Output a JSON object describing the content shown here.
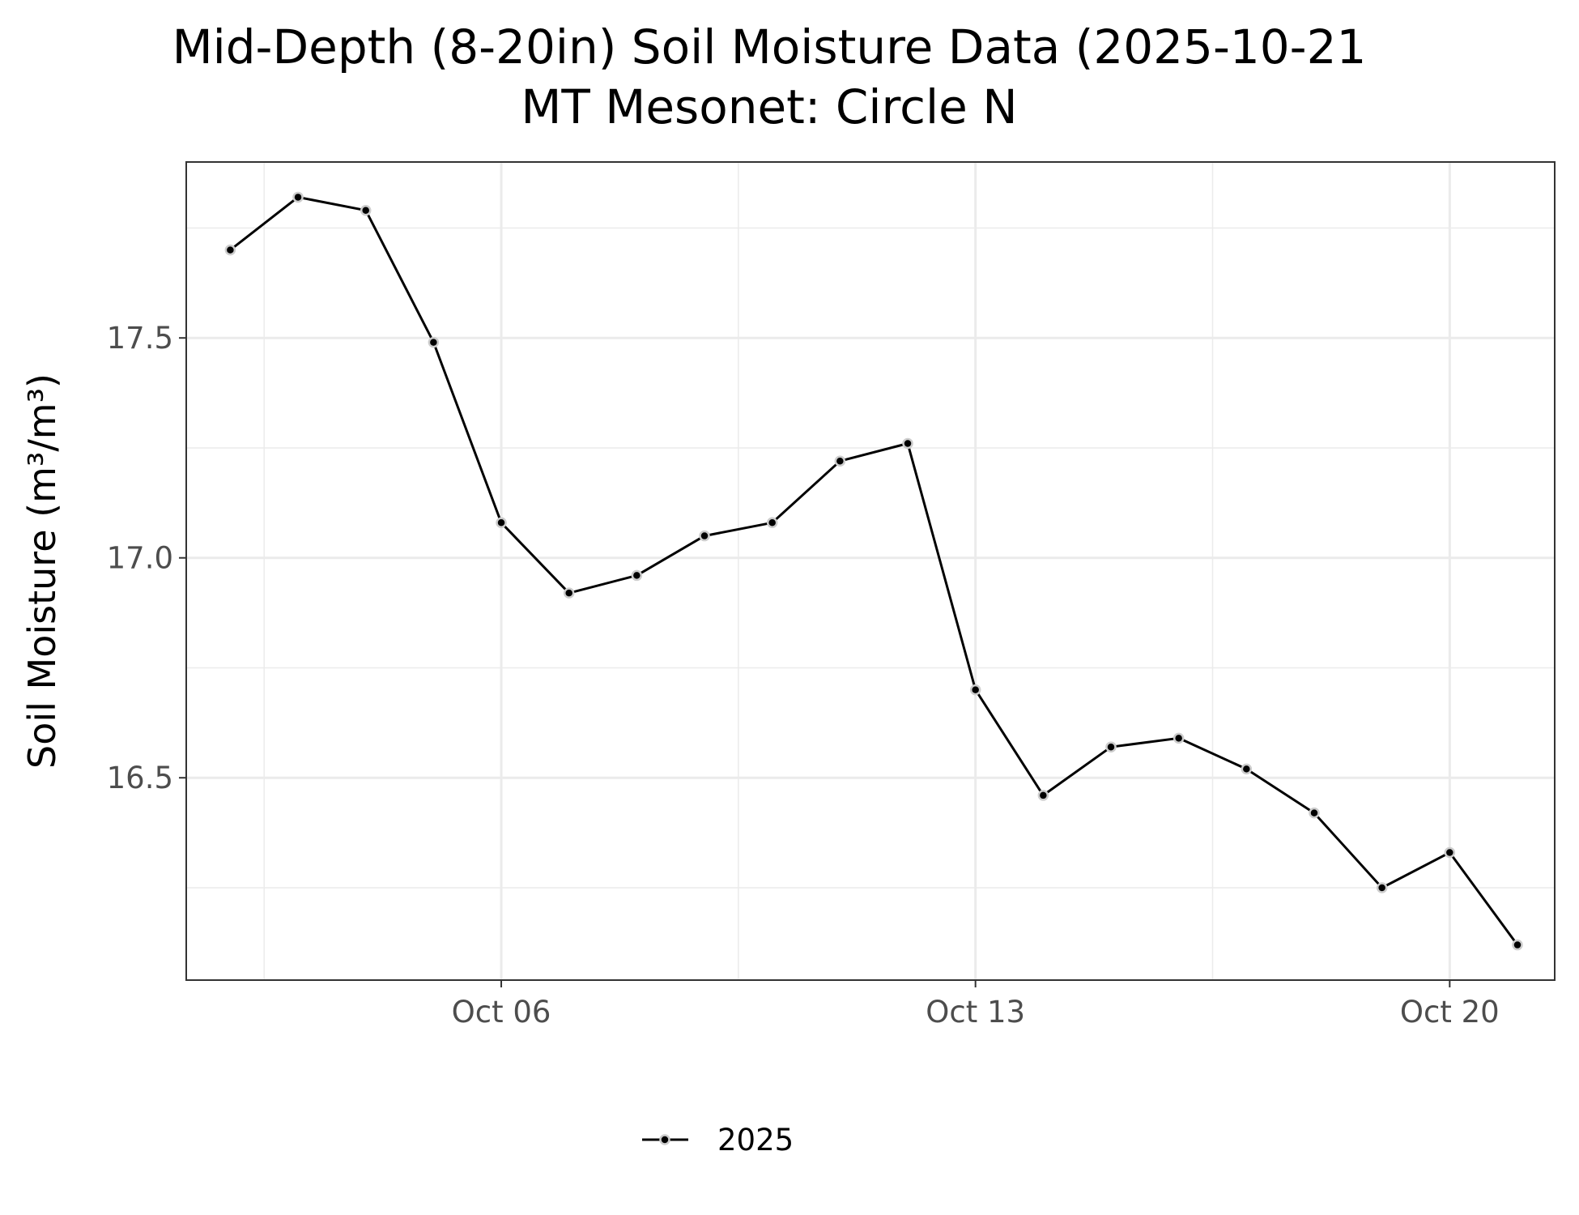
{
  "chart_data": {
    "type": "line",
    "title": [
      "Mid-Depth (8-20in) Soil Moisture Data (2025-10-21",
      "MT Mesonet: Circle N"
    ],
    "xlabel": "",
    "ylabel": "Soil Moisture (m³/m³)",
    "x_tick_labels": [
      "Oct 06",
      "Oct 13",
      "Oct 20"
    ],
    "x_tick_dates": [
      "2025-10-06",
      "2025-10-13",
      "2025-10-20"
    ],
    "y_tick_labels": [
      "16.5",
      "17.0",
      "17.5"
    ],
    "y_ticks": [
      16.5,
      17.0,
      17.5
    ],
    "xlim": [
      "2025-10-01",
      "2025-10-22"
    ],
    "ylim": [
      16.04,
      17.9
    ],
    "grid": true,
    "legend_position": "bottom",
    "series": [
      {
        "name": "2025",
        "color": "#000000",
        "x": [
          "2025-10-02",
          "2025-10-03",
          "2025-10-04",
          "2025-10-05",
          "2025-10-06",
          "2025-10-07",
          "2025-10-08",
          "2025-10-09",
          "2025-10-10",
          "2025-10-11",
          "2025-10-12",
          "2025-10-13",
          "2025-10-14",
          "2025-10-15",
          "2025-10-16",
          "2025-10-17",
          "2025-10-18",
          "2025-10-19",
          "2025-10-20",
          "2025-10-21"
        ],
        "y": [
          17.7,
          17.82,
          17.79,
          17.49,
          17.08,
          16.92,
          16.96,
          17.05,
          17.08,
          17.22,
          17.26,
          16.7,
          16.46,
          16.57,
          16.59,
          16.52,
          16.42,
          16.25,
          16.33,
          16.12
        ]
      }
    ]
  }
}
